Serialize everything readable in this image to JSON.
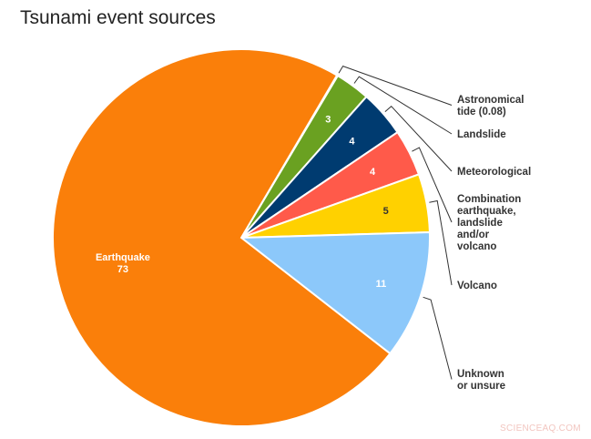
{
  "chart_data": {
    "type": "pie",
    "title": "Tsunami event sources",
    "start_angle_deg": 30.5,
    "direction": "clockwise",
    "legend": "external-callouts",
    "slices": [
      {
        "label": "Astronomical tide (0.08)",
        "callout_lines": [
          "Astronomical",
          "tide (0.08)"
        ],
        "value": 0.08,
        "value_label": "",
        "color": "#ff7f0e"
      },
      {
        "label": "Landslide",
        "callout_lines": [
          "Landslide"
        ],
        "value": 3,
        "value_label": "3",
        "color": "#6aa121"
      },
      {
        "label": "Meteorological",
        "callout_lines": [
          "Meteorological"
        ],
        "value": 4,
        "value_label": "4",
        "color": "#003b70"
      },
      {
        "label": "Combination earthquake, landslide and/or volcano",
        "callout_lines": [
          "Combination",
          "earthquake,",
          "landslide",
          "and/or",
          "volcano"
        ],
        "value": 4,
        "value_label": "4",
        "color": "#ff5a4a"
      },
      {
        "label": "Volcano",
        "callout_lines": [
          "Volcano"
        ],
        "value": 5,
        "value_label": "5",
        "color": "#ffd100"
      },
      {
        "label": "Unknown or unsure",
        "callout_lines": [
          "Unknown",
          "or unsure"
        ],
        "value": 11,
        "value_label": "11",
        "color": "#8cc8fa"
      },
      {
        "label": "Earthquake",
        "callout_lines": [],
        "inside_lines": [
          "Earthquake",
          "73"
        ],
        "value": 73,
        "value_label": "73",
        "color": "#fa7f0a"
      }
    ]
  },
  "watermark": "SCIENCEAQ.COM"
}
